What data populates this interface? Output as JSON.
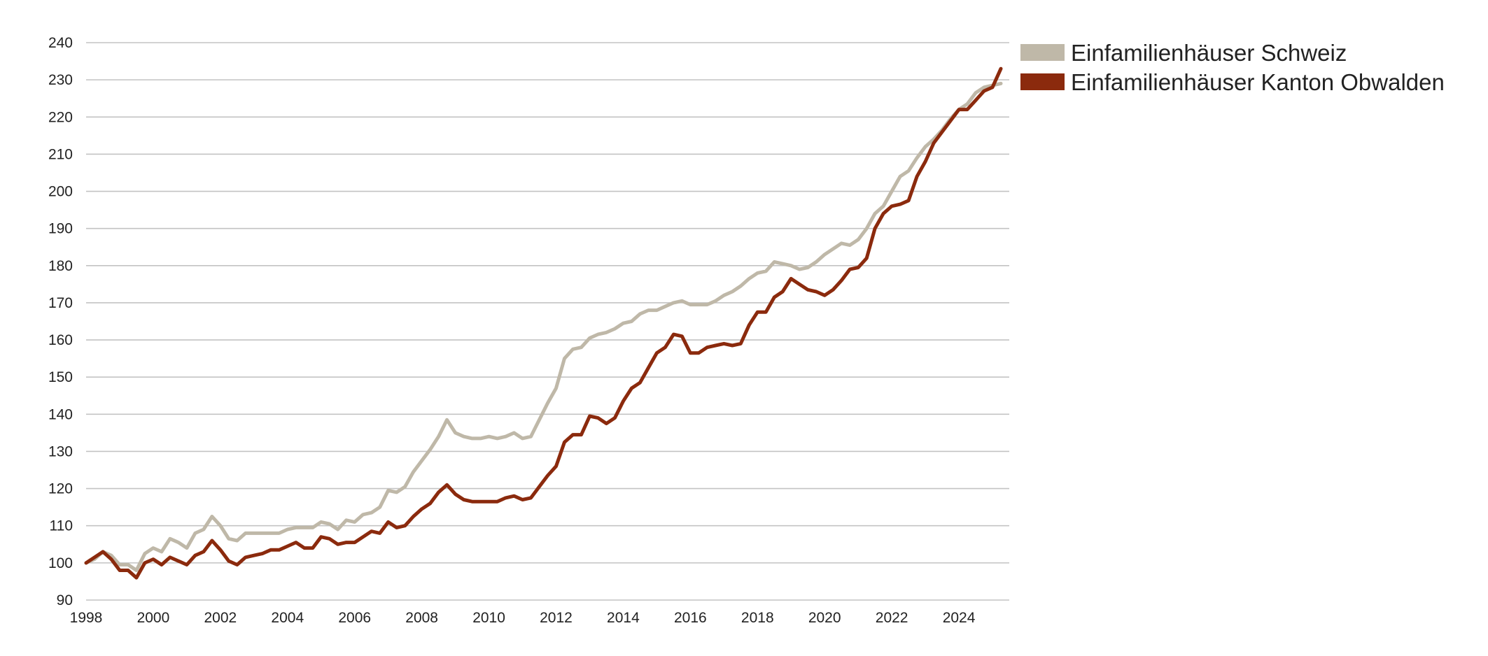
{
  "chart_data": {
    "type": "line",
    "title": "",
    "xlabel": "",
    "ylabel": "",
    "xlim": [
      1998,
      2025.5
    ],
    "ylim": [
      90,
      240
    ],
    "grid": true,
    "legend_position": "top-right",
    "x_ticks": [
      "1998",
      "2000",
      "2002",
      "2004",
      "2006",
      "2008",
      "2010",
      "2012",
      "2014",
      "2016",
      "2018",
      "2020",
      "2022",
      "2024"
    ],
    "y_ticks": [
      "90",
      "100",
      "110",
      "120",
      "130",
      "140",
      "150",
      "160",
      "170",
      "180",
      "190",
      "200",
      "210",
      "220",
      "230",
      "240"
    ],
    "series": [
      {
        "name": "Einfamilienhäuser Schweiz",
        "color": "#bfb8a8",
        "points": [
          [
            1998.0,
            100
          ],
          [
            1998.25,
            101
          ],
          [
            1998.5,
            103
          ],
          [
            1998.75,
            102
          ],
          [
            1999.0,
            99.5
          ],
          [
            1999.25,
            99.5
          ],
          [
            1999.5,
            98
          ],
          [
            1999.75,
            102.5
          ],
          [
            2000.0,
            104
          ],
          [
            2000.25,
            103
          ],
          [
            2000.5,
            106.5
          ],
          [
            2000.75,
            105.5
          ],
          [
            2001.0,
            104
          ],
          [
            2001.25,
            108
          ],
          [
            2001.5,
            109
          ],
          [
            2001.75,
            112.5
          ],
          [
            2002.0,
            110
          ],
          [
            2002.25,
            106.5
          ],
          [
            2002.5,
            106
          ],
          [
            2002.75,
            108
          ],
          [
            2003.0,
            108
          ],
          [
            2003.25,
            108
          ],
          [
            2003.5,
            108
          ],
          [
            2003.75,
            108
          ],
          [
            2004.0,
            109
          ],
          [
            2004.25,
            109.5
          ],
          [
            2004.5,
            109.5
          ],
          [
            2004.75,
            109.5
          ],
          [
            2005.0,
            111
          ],
          [
            2005.25,
            110.5
          ],
          [
            2005.5,
            109
          ],
          [
            2005.75,
            111.5
          ],
          [
            2006.0,
            111
          ],
          [
            2006.25,
            113
          ],
          [
            2006.5,
            113.5
          ],
          [
            2006.75,
            115
          ],
          [
            2007.0,
            119.5
          ],
          [
            2007.25,
            119
          ],
          [
            2007.5,
            120.5
          ],
          [
            2007.75,
            124.5
          ],
          [
            2008.0,
            127.5
          ],
          [
            2008.25,
            130.5
          ],
          [
            2008.5,
            134
          ],
          [
            2008.75,
            138.5
          ],
          [
            2009.0,
            135
          ],
          [
            2009.25,
            134
          ],
          [
            2009.5,
            133.5
          ],
          [
            2009.75,
            133.5
          ],
          [
            2010.0,
            134
          ],
          [
            2010.25,
            133.5
          ],
          [
            2010.5,
            134
          ],
          [
            2010.75,
            135
          ],
          [
            2011.0,
            133.5
          ],
          [
            2011.25,
            134
          ],
          [
            2011.5,
            138.5
          ],
          [
            2011.75,
            143
          ],
          [
            2012.0,
            147
          ],
          [
            2012.25,
            155
          ],
          [
            2012.5,
            157.5
          ],
          [
            2012.75,
            158
          ],
          [
            2013.0,
            160.5
          ],
          [
            2013.25,
            161.5
          ],
          [
            2013.5,
            162
          ],
          [
            2013.75,
            163
          ],
          [
            2014.0,
            164.5
          ],
          [
            2014.25,
            165
          ],
          [
            2014.5,
            167
          ],
          [
            2014.75,
            168
          ],
          [
            2015.0,
            168
          ],
          [
            2015.25,
            169
          ],
          [
            2015.5,
            170
          ],
          [
            2015.75,
            170.5
          ],
          [
            2016.0,
            169.5
          ],
          [
            2016.25,
            169.5
          ],
          [
            2016.5,
            169.5
          ],
          [
            2016.75,
            170.5
          ],
          [
            2017.0,
            172
          ],
          [
            2017.25,
            173
          ],
          [
            2017.5,
            174.5
          ],
          [
            2017.75,
            176.5
          ],
          [
            2018.0,
            178
          ],
          [
            2018.25,
            178.5
          ],
          [
            2018.5,
            181
          ],
          [
            2018.75,
            180.5
          ],
          [
            2019.0,
            180
          ],
          [
            2019.25,
            179
          ],
          [
            2019.5,
            179.5
          ],
          [
            2019.75,
            181
          ],
          [
            2020.0,
            183
          ],
          [
            2020.25,
            184.5
          ],
          [
            2020.5,
            186
          ],
          [
            2020.75,
            185.5
          ],
          [
            2021.0,
            187
          ],
          [
            2021.25,
            190
          ],
          [
            2021.5,
            194
          ],
          [
            2021.75,
            196
          ],
          [
            2022.0,
            200
          ],
          [
            2022.25,
            204
          ],
          [
            2022.5,
            205.5
          ],
          [
            2022.75,
            209
          ],
          [
            2023.0,
            212
          ],
          [
            2023.25,
            214
          ],
          [
            2023.5,
            216.5
          ],
          [
            2023.75,
            219.5
          ],
          [
            2024.0,
            222
          ],
          [
            2024.25,
            223.5
          ],
          [
            2024.5,
            226.5
          ],
          [
            2024.75,
            228
          ],
          [
            2025.0,
            228.5
          ],
          [
            2025.25,
            229
          ]
        ]
      },
      {
        "name": "Einfamilienhäuser Kanton Obwalden",
        "color": "#8b2a0d",
        "points": [
          [
            1998.0,
            100
          ],
          [
            1998.25,
            101.5
          ],
          [
            1998.5,
            103
          ],
          [
            1998.75,
            101
          ],
          [
            1999.0,
            98
          ],
          [
            1999.25,
            98
          ],
          [
            1999.5,
            96
          ],
          [
            1999.75,
            100
          ],
          [
            2000.0,
            101
          ],
          [
            2000.25,
            99.5
          ],
          [
            2000.5,
            101.5
          ],
          [
            2000.75,
            100.5
          ],
          [
            2001.0,
            99.5
          ],
          [
            2001.25,
            102
          ],
          [
            2001.5,
            103
          ],
          [
            2001.75,
            106
          ],
          [
            2002.0,
            103.5
          ],
          [
            2002.25,
            100.5
          ],
          [
            2002.5,
            99.5
          ],
          [
            2002.75,
            101.5
          ],
          [
            2003.0,
            102
          ],
          [
            2003.25,
            102.5
          ],
          [
            2003.5,
            103.5
          ],
          [
            2003.75,
            103.5
          ],
          [
            2004.0,
            104.5
          ],
          [
            2004.25,
            105.5
          ],
          [
            2004.5,
            104
          ],
          [
            2004.75,
            104
          ],
          [
            2005.0,
            107
          ],
          [
            2005.25,
            106.5
          ],
          [
            2005.5,
            105
          ],
          [
            2005.75,
            105.5
          ],
          [
            2006.0,
            105.5
          ],
          [
            2006.25,
            107
          ],
          [
            2006.5,
            108.5
          ],
          [
            2006.75,
            108
          ],
          [
            2007.0,
            111
          ],
          [
            2007.25,
            109.5
          ],
          [
            2007.5,
            110
          ],
          [
            2007.75,
            112.5
          ],
          [
            2008.0,
            114.5
          ],
          [
            2008.25,
            116
          ],
          [
            2008.5,
            119
          ],
          [
            2008.75,
            121
          ],
          [
            2009.0,
            118.5
          ],
          [
            2009.25,
            117
          ],
          [
            2009.5,
            116.5
          ],
          [
            2009.75,
            116.5
          ],
          [
            2010.0,
            116.5
          ],
          [
            2010.25,
            116.5
          ],
          [
            2010.5,
            117.5
          ],
          [
            2010.75,
            118
          ],
          [
            2011.0,
            117
          ],
          [
            2011.25,
            117.5
          ],
          [
            2011.5,
            120.5
          ],
          [
            2011.75,
            123.5
          ],
          [
            2012.0,
            126
          ],
          [
            2012.25,
            132.5
          ],
          [
            2012.5,
            134.5
          ],
          [
            2012.75,
            134.5
          ],
          [
            2013.0,
            139.5
          ],
          [
            2013.25,
            139
          ],
          [
            2013.5,
            137.5
          ],
          [
            2013.75,
            139
          ],
          [
            2014.0,
            143.5
          ],
          [
            2014.25,
            147
          ],
          [
            2014.5,
            148.5
          ],
          [
            2014.75,
            152.5
          ],
          [
            2015.0,
            156.5
          ],
          [
            2015.25,
            158
          ],
          [
            2015.5,
            161.5
          ],
          [
            2015.75,
            161
          ],
          [
            2016.0,
            156.5
          ],
          [
            2016.25,
            156.5
          ],
          [
            2016.5,
            158
          ],
          [
            2016.75,
            158.5
          ],
          [
            2017.0,
            159
          ],
          [
            2017.25,
            158.5
          ],
          [
            2017.5,
            159
          ],
          [
            2017.75,
            164
          ],
          [
            2018.0,
            167.5
          ],
          [
            2018.25,
            167.5
          ],
          [
            2018.5,
            171.5
          ],
          [
            2018.75,
            173
          ],
          [
            2019.0,
            176.5
          ],
          [
            2019.25,
            175
          ],
          [
            2019.5,
            173.5
          ],
          [
            2019.75,
            173
          ],
          [
            2020.0,
            172
          ],
          [
            2020.25,
            173.5
          ],
          [
            2020.5,
            176
          ],
          [
            2020.75,
            179
          ],
          [
            2021.0,
            179.5
          ],
          [
            2021.25,
            182
          ],
          [
            2021.5,
            190
          ],
          [
            2021.75,
            194
          ],
          [
            2022.0,
            196
          ],
          [
            2022.25,
            196.5
          ],
          [
            2022.5,
            197.5
          ],
          [
            2022.75,
            204
          ],
          [
            2023.0,
            208
          ],
          [
            2023.25,
            213
          ],
          [
            2023.5,
            216
          ],
          [
            2023.75,
            219
          ],
          [
            2024.0,
            222
          ],
          [
            2024.25,
            222
          ],
          [
            2024.5,
            224.5
          ],
          [
            2024.75,
            227
          ],
          [
            2025.0,
            228
          ],
          [
            2025.25,
            233
          ]
        ]
      }
    ]
  }
}
